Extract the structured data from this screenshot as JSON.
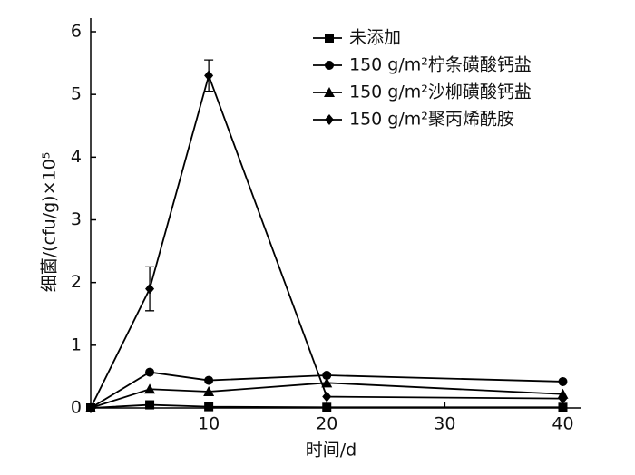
{
  "chart_data": {
    "type": "line",
    "x_label": "时间/d",
    "y_label": "细菌/(cfu/g)×10⁵",
    "x": [
      0,
      5,
      10,
      20,
      40
    ],
    "xlim": [
      0,
      41.5
    ],
    "xticks": [
      10,
      20,
      30,
      40
    ],
    "ylim": [
      0,
      6
    ],
    "yticks": [
      0,
      1,
      2,
      3,
      4,
      5,
      6
    ],
    "legend": "top-right",
    "series": [
      {
        "name": "未添加",
        "color": "#000000",
        "marker": "square",
        "values": [
          0,
          0.05,
          0.02,
          0.01,
          0.01
        ]
      },
      {
        "name": "150 g/m²柠条磺酸钙盐",
        "color": "#000000",
        "marker": "circle",
        "values": [
          0,
          0.57,
          0.44,
          0.52,
          0.42
        ]
      },
      {
        "name": "150 g/m²沙柳磺酸钙盐",
        "color": "#000000",
        "marker": "triangle",
        "values": [
          0,
          0.3,
          0.26,
          0.4,
          0.22
        ]
      },
      {
        "name": "150 g/m²聚丙烯酰胺",
        "color": "#000000",
        "marker": "diamond",
        "values": [
          0,
          1.9,
          5.3,
          0.18,
          0.15
        ],
        "errors": [
          null,
          0.35,
          0.25,
          null,
          null
        ]
      }
    ]
  }
}
